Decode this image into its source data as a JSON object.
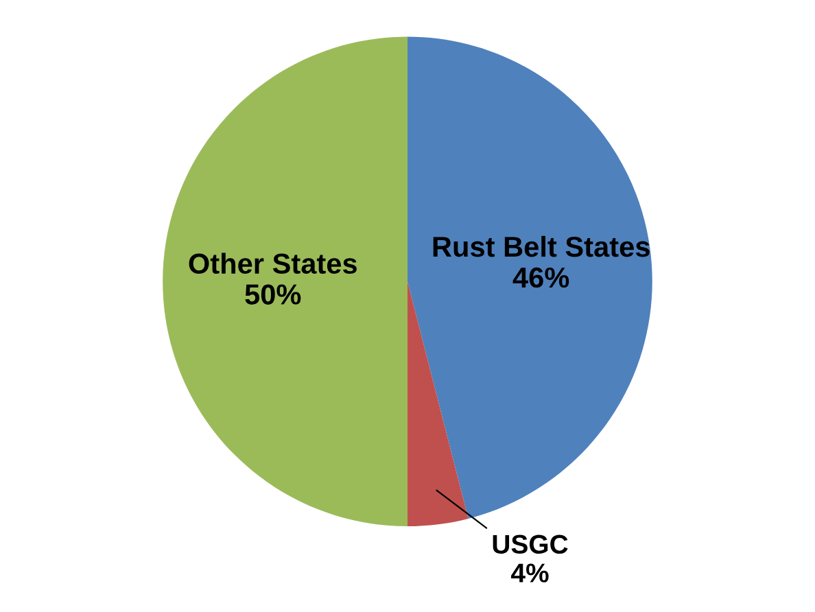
{
  "chart_data": {
    "type": "pie",
    "categories": [
      "Rust Belt States",
      "USGC",
      "Other States"
    ],
    "values": [
      46,
      4,
      50
    ],
    "value_labels": [
      "46%",
      "4%",
      "50%"
    ],
    "colors": [
      "#4f81bd",
      "#c0504d",
      "#9bbb59"
    ],
    "legend": false
  }
}
